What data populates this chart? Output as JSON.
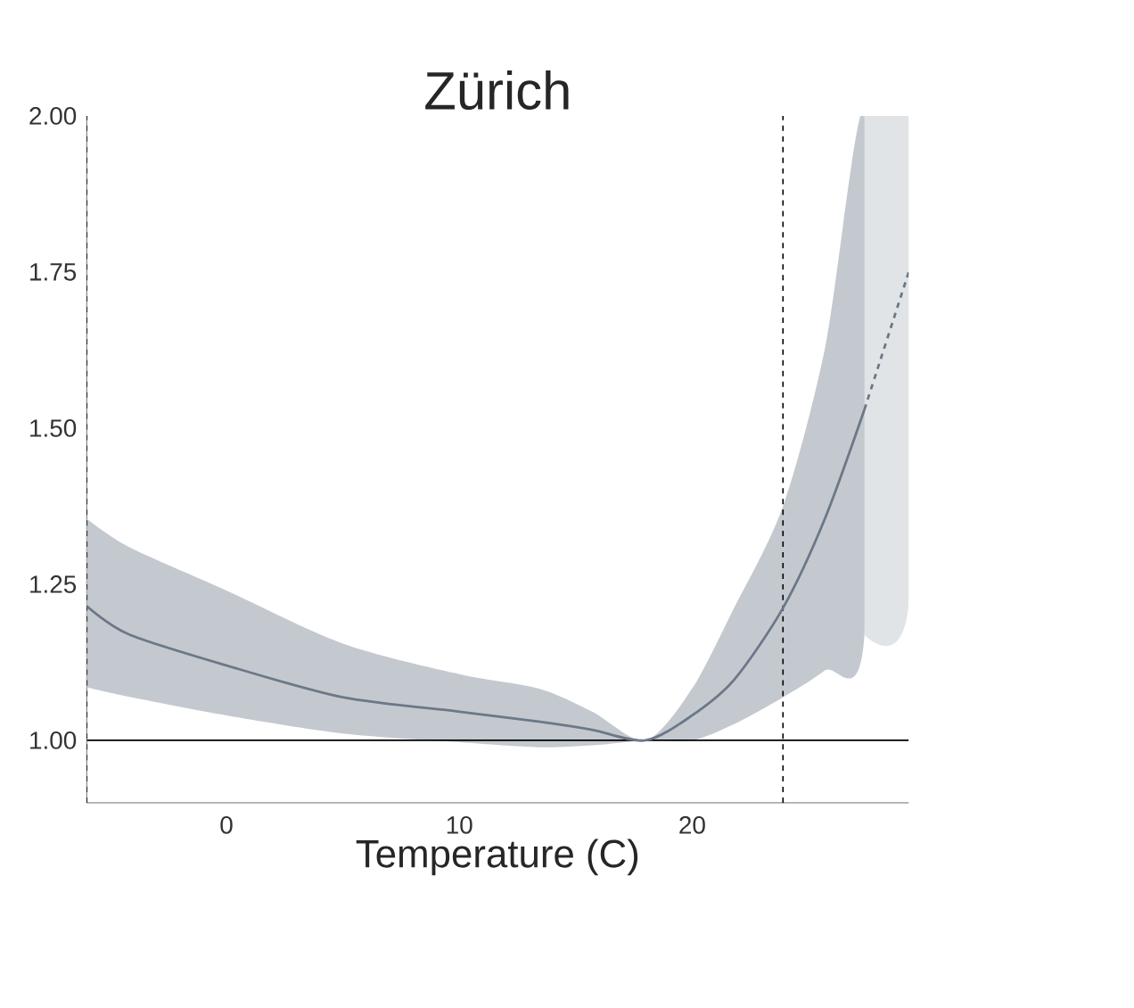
{
  "chart_data": {
    "type": "line",
    "title": "Zürich",
    "xlabel": "Temperature (C)",
    "xlim": [
      -6,
      29.3
    ],
    "ylim": [
      0.9,
      2.0
    ],
    "xticks": [
      0,
      10,
      20
    ],
    "yticks": [
      {
        "value": 1.0,
        "label": "1.00"
      },
      {
        "value": 1.25,
        "label": "1.25"
      },
      {
        "value": 1.5,
        "label": "1.50"
      },
      {
        "value": 1.75,
        "label": "1.75"
      },
      {
        "value": 2.0,
        "label": "2.00"
      }
    ],
    "series": [
      {
        "color": "#6b7888",
        "line_style": "solid",
        "x": [
          -6,
          -4.2,
          0,
          5,
          10,
          13.4,
          15.7,
          18,
          20,
          21.8,
          23.9,
          25.7,
          27.4
        ],
        "values": [
          1.215,
          1.17,
          1.12,
          1.069,
          1.046,
          1.03,
          1.017,
          1.0,
          1.04,
          1.097,
          1.212,
          1.355,
          1.53
        ],
        "lower": [
          1.085,
          1.07,
          1.04,
          1.011,
          0.997,
          0.989,
          0.992,
          1.0,
          1.0,
          1.026,
          1.069,
          1.112,
          1.169
        ],
        "upper": [
          1.355,
          1.31,
          1.24,
          1.155,
          1.106,
          1.083,
          1.046,
          1.0,
          1.083,
          1.212,
          1.375,
          1.627,
          2.0
        ]
      },
      {
        "color": "#6b7888",
        "line_style": "dashed",
        "x": [
          27.4,
          29.3
        ],
        "values": [
          1.53,
          1.75
        ],
        "lower": [
          1.169,
          1.22
        ],
        "upper": [
          2.0,
          2.0
        ]
      }
    ],
    "ref_lines": [
      {
        "axis": "x",
        "value": -6,
        "line_style": "dashed",
        "color": "#000000"
      },
      {
        "axis": "x",
        "value": 23.9,
        "line_style": "dashed",
        "color": "#000000"
      },
      {
        "axis": "y",
        "value": 1.0,
        "line_style": "solid",
        "color": "#000000"
      }
    ]
  }
}
